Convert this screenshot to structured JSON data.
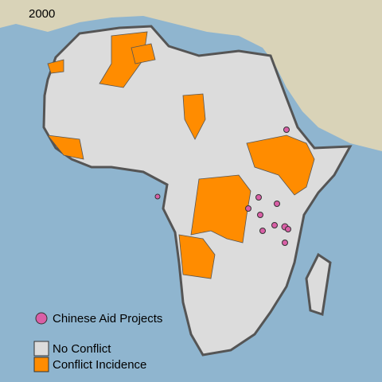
{
  "map": {
    "year": "2000",
    "legend": [
      {
        "label": "Chinese Aid Projects",
        "color": "#d95fa6",
        "shape": "circle"
      },
      {
        "label": "No Conflict",
        "color": "#dcdcdc",
        "shape": "square"
      },
      {
        "label": "Conflict Incidence",
        "color": "#ff8c00",
        "shape": "square"
      }
    ]
  }
}
